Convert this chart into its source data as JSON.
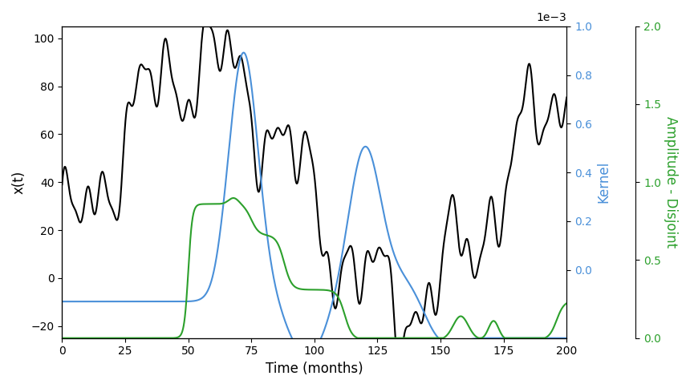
{
  "xlabel": "Time (months)",
  "ylabel_left": "x(t)",
  "ylabel_mid": "Kernel",
  "ylabel_right": "Amplitude - Disjoint",
  "xlim": [
    0,
    200
  ],
  "ylim_left": [
    -25,
    105
  ],
  "color_black": "#000000",
  "color_blue": "#4a90d9",
  "color_green": "#2ca02c",
  "linewidth": 1.5,
  "xticks": [
    0,
    25,
    50,
    75,
    100,
    125,
    150,
    175,
    200
  ],
  "kernel_ylim": [
    -0.00028,
    0.001
  ],
  "kernel_yticks": [
    0.0,
    0.0002,
    0.0004,
    0.0006,
    0.0008,
    0.001
  ],
  "kernel_yticklabels": [
    "0.0",
    "0.2",
    "0.4",
    "0.6",
    "0.8",
    "1.0"
  ],
  "disjoint_ylim": [
    0.0,
    0.002
  ],
  "disjoint_yticks": [
    0.0,
    0.0005,
    0.001,
    0.0015,
    0.002
  ],
  "disjoint_yticklabels": [
    "0.0",
    "0.5",
    "1.0",
    "1.5",
    "2.0"
  ]
}
